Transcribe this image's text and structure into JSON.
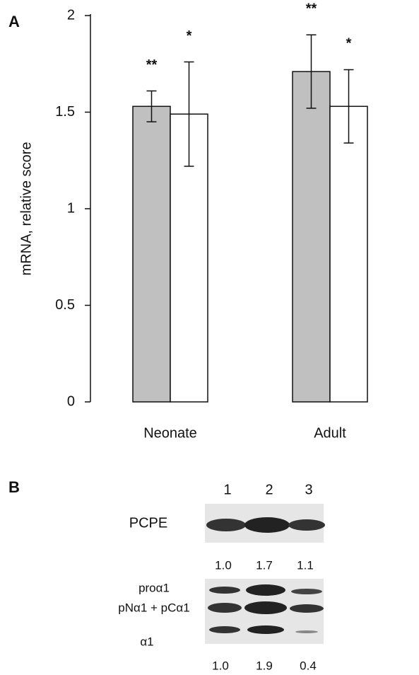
{
  "chart_data": {
    "type": "bar",
    "panel_label": "A",
    "y_label": "mRNA, relative score",
    "categories": [
      "Neonate",
      "Adult"
    ],
    "series": [
      {
        "color": "#c0c0c0",
        "values": [
          1.53,
          1.71
        ],
        "errors": [
          0.08,
          0.19
        ],
        "annotations": [
          "**",
          "**"
        ]
      },
      {
        "color": "#ffffff",
        "values": [
          1.49,
          1.53
        ],
        "errors": [
          0.27,
          0.19
        ],
        "annotations": [
          "*",
          "*"
        ]
      }
    ],
    "ylim": [
      0,
      2
    ],
    "yticks": [
      0,
      0.5,
      1,
      1.5,
      2
    ],
    "grid": false
  },
  "panel_b": {
    "panel_label": "B",
    "lanes": [
      "1",
      "2",
      "3"
    ],
    "blots": [
      {
        "labels": [
          "PCPE"
        ],
        "densities": [
          "1.0",
          "1.7",
          "1.1"
        ]
      },
      {
        "labels": [
          "proα1",
          "pNα1 + pCα1",
          "α1"
        ],
        "densities": [
          "1.0",
          "1.9",
          "0.4"
        ]
      }
    ]
  }
}
